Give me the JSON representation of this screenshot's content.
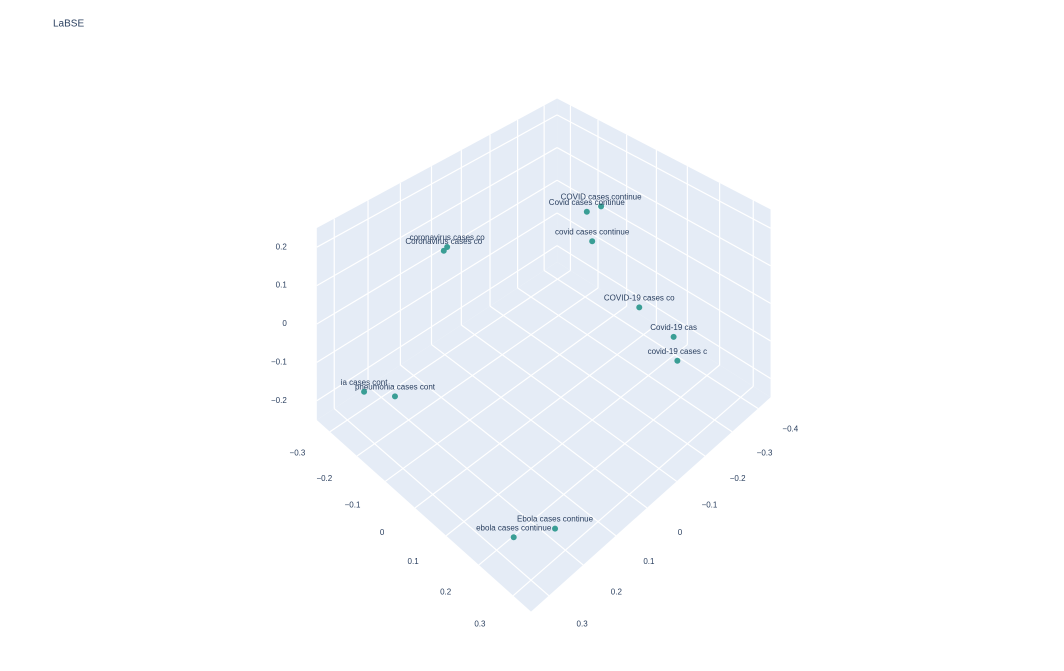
{
  "chart_data": {
    "type": "scatter3d",
    "title": "LaBSE",
    "color": "#3a9e95",
    "text": [
      "COVID cases continue",
      "Covid cases continue",
      "covid cases continue",
      "coronavirus cases co",
      "Coronavirus cases co",
      "COVID-19 cases co",
      "Covid-19 cas",
      "covid-19 cases c",
      "ia cases cont",
      "pneumonia cases cont",
      "Ebola cases continue",
      "ebola cases continue"
    ],
    "x": [
      0.01,
      0.0,
      -0.01,
      -0.19,
      -0.185,
      0.14,
      0.26,
      0.275,
      -0.2,
      -0.14,
      0.285,
      0.24
    ],
    "y": [
      -0.23,
      -0.19,
      -0.22,
      0.09,
      0.105,
      -0.22,
      -0.2,
      -0.195,
      0.33,
      0.29,
      0.215,
      0.29
    ],
    "z": [
      0.2,
      0.2,
      0.1,
      0.15,
      0.15,
      0,
      0,
      -0.05,
      -0.1,
      -0.1,
      -0.2,
      -0.2
    ],
    "xlim": [
      -0.35,
      0.35
    ],
    "ylim": [
      -0.45,
      0.35
    ],
    "zlim": [
      -0.25,
      0.25
    ],
    "xticks": [
      {
        "value": -0.3,
        "label": "−0.3"
      },
      {
        "value": -0.2,
        "label": "−0.2"
      },
      {
        "value": -0.1,
        "label": "−0.1"
      },
      0,
      0.1,
      0.2,
      0.3
    ],
    "yticks": [
      {
        "value": -0.4,
        "label": "−0.4"
      },
      {
        "value": -0.3,
        "label": "−0.3"
      },
      {
        "value": -0.2,
        "label": "−0.2"
      },
      {
        "value": -0.1,
        "label": "−0.1"
      },
      0,
      0.1,
      0.2,
      0.3
    ],
    "zticks": [
      {
        "value": -0.2,
        "label": "−0.2"
      },
      {
        "value": -0.1,
        "label": "−0.1"
      },
      0,
      0.1,
      0.2
    ],
    "grid": true
  }
}
